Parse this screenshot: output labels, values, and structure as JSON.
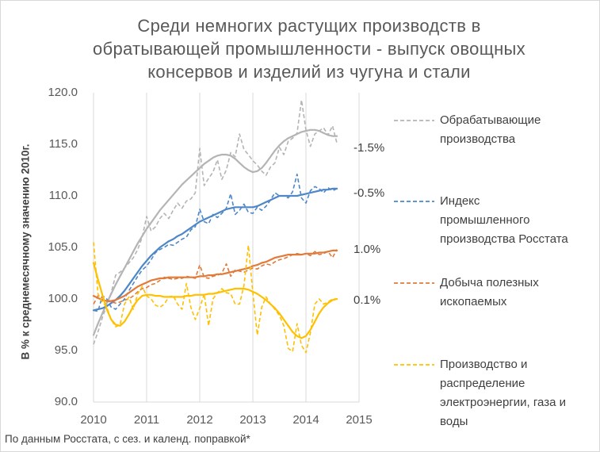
{
  "title_lines": [
    "Среди немногих растущих производств в",
    "обратывающей промышленности - выпуск овощных",
    "консервов и изделий из чугуна и стали"
  ],
  "footnote": "По данным Росстата, с сез. и календ. поправкой*",
  "chart_data": {
    "type": "line",
    "title": "Среди немногих растущих производств в обратывающей промышленности - выпуск овощных консервов и изделий из чугуна и стали",
    "ylabel": "В % к среднемесячному значению 2010г.",
    "xlabel": "",
    "xlim": [
      2010,
      2015
    ],
    "ylim": [
      90,
      120
    ],
    "x_ticks": [
      "2010",
      "2011",
      "2012",
      "2013",
      "2014",
      "2015"
    ],
    "y_ticks": [
      "90.0",
      "95.0",
      "100.0",
      "105.0",
      "110.0",
      "115.0",
      "120.0"
    ],
    "grid": "vertical",
    "legend_position": "right",
    "series": [
      {
        "name": "Обрабатывающие производства",
        "legend_lines": [
          "Обрабатывающие",
          "производства"
        ],
        "color": "#b4b4b4",
        "end_label": "-1.5%",
        "x_start": 2010.0,
        "x_step": 0.083333,
        "raw": [
          95.6,
          96.8,
          98.2,
          99.4,
          100.6,
          102.3,
          102.6,
          103.0,
          103.5,
          104.0,
          104.8,
          106.0,
          108.0,
          106.6,
          107.0,
          107.8,
          108.3,
          107.8,
          108.6,
          109.3,
          108.8,
          109.5,
          109.7,
          110.3,
          114.6,
          111.0,
          111.7,
          112.3,
          113.5,
          111.6,
          112.5,
          114.2,
          113.8,
          116.0,
          114.5,
          114.0,
          113.4,
          113.0,
          112.4,
          112.0,
          112.8,
          113.2,
          114.7,
          114.0,
          115.3,
          115.6,
          116.1,
          119.3,
          116.4,
          114.8,
          116.0,
          116.3,
          116.6,
          115.9,
          116.8,
          115.1
        ],
        "trend": [
          96.5,
          97.6,
          98.6,
          99.6,
          100.5,
          101.4,
          102.2,
          103.0,
          103.8,
          104.6,
          105.4,
          106.1,
          106.8,
          107.4,
          108.0,
          108.6,
          109.1,
          109.6,
          110.1,
          110.6,
          111.1,
          111.5,
          111.9,
          112.3,
          112.7,
          113.1,
          113.4,
          113.7,
          113.9,
          114.0,
          114.0,
          113.9,
          113.6,
          113.2,
          112.8,
          112.5,
          112.3,
          112.4,
          112.7,
          113.2,
          113.8,
          114.4,
          114.9,
          115.3,
          115.6,
          115.8,
          116.0,
          116.2,
          116.3,
          116.4,
          116.4,
          116.3,
          116.1,
          115.9,
          115.8,
          115.8
        ]
      },
      {
        "name": "Индекс промышленного производства Росстата",
        "legend_lines": [
          "Индекс",
          "промышленного",
          "производства Росстата"
        ],
        "color": "#4e87c8",
        "end_label": "-0.5%",
        "x_start": 2010.0,
        "x_step": 0.083333,
        "raw": [
          98.9,
          98.8,
          100.3,
          100.0,
          99.2,
          99.0,
          99.5,
          100.0,
          100.8,
          101.5,
          102.2,
          102.8,
          103.2,
          103.8,
          104.5,
          104.8,
          105.0,
          105.3,
          105.2,
          105.5,
          105.8,
          106.0,
          106.7,
          107.0,
          108.7,
          107.5,
          107.3,
          108.2,
          107.9,
          108.3,
          108.8,
          110.2,
          108.2,
          108.6,
          109.2,
          108.4,
          108.3,
          108.9,
          108.6,
          109.0,
          109.6,
          110.3,
          110.0,
          110.0,
          109.8,
          110.4,
          112.1,
          109.8,
          109.3,
          110.5,
          110.9,
          110.7,
          110.3,
          110.8,
          110.5,
          110.7
        ],
        "trend": [
          98.9,
          99.0,
          99.1,
          99.3,
          99.6,
          99.9,
          100.3,
          100.8,
          101.4,
          102.0,
          102.6,
          103.2,
          103.7,
          104.2,
          104.6,
          105.0,
          105.3,
          105.6,
          105.8,
          106.1,
          106.3,
          106.6,
          106.9,
          107.2,
          107.5,
          107.7,
          107.9,
          108.1,
          108.3,
          108.5,
          108.7,
          108.8,
          108.9,
          108.9,
          108.9,
          108.9,
          108.9,
          109.0,
          109.2,
          109.4,
          109.6,
          109.8,
          110.0,
          110.0,
          110.0,
          110.0,
          110.0,
          110.1,
          110.2,
          110.3,
          110.4,
          110.5,
          110.6,
          110.6,
          110.7,
          110.7
        ]
      },
      {
        "name": "Добыча полезных ископаемых",
        "legend_lines": [
          "Добыча полезных",
          "ископаемых"
        ],
        "color": "#e07b39",
        "end_label": "1.0%",
        "x_start": 2010.0,
        "x_step": 0.083333,
        "raw": [
          99.5,
          100.3,
          100.1,
          99.8,
          99.7,
          99.6,
          99.7,
          99.9,
          100.0,
          100.3,
          100.7,
          101.0,
          101.1,
          101.4,
          101.5,
          101.8,
          102.1,
          102.0,
          101.9,
          102.0,
          102.0,
          102.2,
          102.1,
          102.0,
          103.3,
          102.1,
          102.0,
          102.2,
          102.3,
          102.5,
          103.4,
          102.2,
          102.8,
          102.7,
          102.6,
          102.8,
          103.0,
          102.9,
          103.2,
          103.4,
          103.3,
          103.6,
          103.8,
          103.9,
          104.1,
          104.3,
          104.4,
          104.3,
          104.4,
          104.2,
          104.6,
          104.3,
          104.4,
          104.6,
          104.0,
          104.8
        ],
        "trend": [
          100.3,
          100.1,
          99.9,
          99.8,
          99.8,
          99.9,
          100.1,
          100.3,
          100.6,
          100.9,
          101.2,
          101.4,
          101.6,
          101.8,
          101.9,
          102.0,
          102.0,
          102.1,
          102.1,
          102.1,
          102.1,
          102.1,
          102.1,
          102.1,
          102.2,
          102.2,
          102.3,
          102.3,
          102.4,
          102.4,
          102.5,
          102.6,
          102.7,
          102.8,
          102.9,
          103.0,
          103.2,
          103.3,
          103.5,
          103.6,
          103.8,
          104.0,
          104.1,
          104.2,
          104.3,
          104.3,
          104.3,
          104.3,
          104.4,
          104.4,
          104.4,
          104.5,
          104.5,
          104.6,
          104.7,
          104.7
        ]
      },
      {
        "name": "Производство и распределение электроэнергии, газа и воды",
        "legend_lines": [
          "Производство и",
          "распределение",
          "электроэнергии, газа и",
          "воды"
        ],
        "color": "#ffc000",
        "end_label": "0.1%",
        "x_start": 2010.0,
        "x_step": 0.083333,
        "raw": [
          105.5,
          100.5,
          99.7,
          99.2,
          98.0,
          97.3,
          97.5,
          99.5,
          100.2,
          99.0,
          100.5,
          101.2,
          100.3,
          100.0,
          99.4,
          99.2,
          99.5,
          100.2,
          100.3,
          99.5,
          99.0,
          101.5,
          99.2,
          98.0,
          99.1,
          100.5,
          97.4,
          100.0,
          100.6,
          101.0,
          100.6,
          100.5,
          99.5,
          99.5,
          101.3,
          105.2,
          100.6,
          96.5,
          99.2,
          100.2,
          99.5,
          99.0,
          98.4,
          97.4,
          95.2,
          94.9,
          97.6,
          95.5,
          94.8,
          96.7,
          99.5,
          100.0,
          99.5,
          99.7,
          100.0,
          100.0
        ],
        "trend": [
          103.5,
          101.9,
          100.4,
          99.0,
          98.0,
          97.5,
          97.4,
          97.8,
          98.5,
          99.3,
          99.9,
          100.3,
          100.4,
          100.4,
          100.3,
          100.3,
          100.2,
          100.2,
          100.2,
          100.2,
          100.2,
          100.3,
          100.3,
          100.4,
          100.4,
          100.4,
          100.5,
          100.5,
          100.6,
          100.7,
          100.8,
          100.9,
          101.0,
          101.0,
          101.0,
          100.9,
          100.7,
          100.5,
          100.2,
          99.9,
          99.5,
          99.1,
          98.6,
          98.0,
          97.4,
          96.8,
          96.4,
          96.2,
          96.4,
          97.0,
          97.8,
          98.6,
          99.2,
          99.6,
          99.9,
          100.0
        ]
      }
    ]
  }
}
